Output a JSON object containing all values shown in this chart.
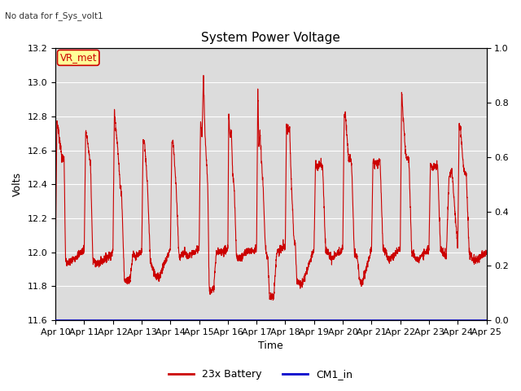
{
  "title": "System Power Voltage",
  "subtitle": "No data for f_Sys_volt1",
  "xlabel": "Time",
  "ylabel": "Volts",
  "ylim_left": [
    11.6,
    13.2
  ],
  "ylim_right": [
    0.0,
    1.0
  ],
  "yticks_left": [
    11.6,
    11.8,
    12.0,
    12.2,
    12.4,
    12.6,
    12.8,
    13.0,
    13.2
  ],
  "yticks_right": [
    0.0,
    0.2,
    0.4,
    0.6,
    0.8,
    1.0
  ],
  "x_labels": [
    "Apr 10",
    "Apr 11",
    "Apr 12",
    "Apr 13",
    "Apr 14",
    "Apr 15",
    "Apr 16",
    "Apr 17",
    "Apr 18",
    "Apr 19",
    "Apr 20",
    "Apr 21",
    "Apr 22",
    "Apr 23",
    "Apr 24",
    "Apr 25"
  ],
  "bg_color": "#dcdcdc",
  "fig_bg_color": "#ffffff",
  "line_color_battery": "#cc0000",
  "line_color_cm1": "#0000cc",
  "legend_labels": [
    "23x Battery",
    "CM1_in"
  ],
  "annotation_text": "VR_met",
  "annotation_color": "#cc0000",
  "annotation_bg": "#ffff99",
  "title_fontsize": 11,
  "label_fontsize": 9,
  "tick_fontsize": 8
}
